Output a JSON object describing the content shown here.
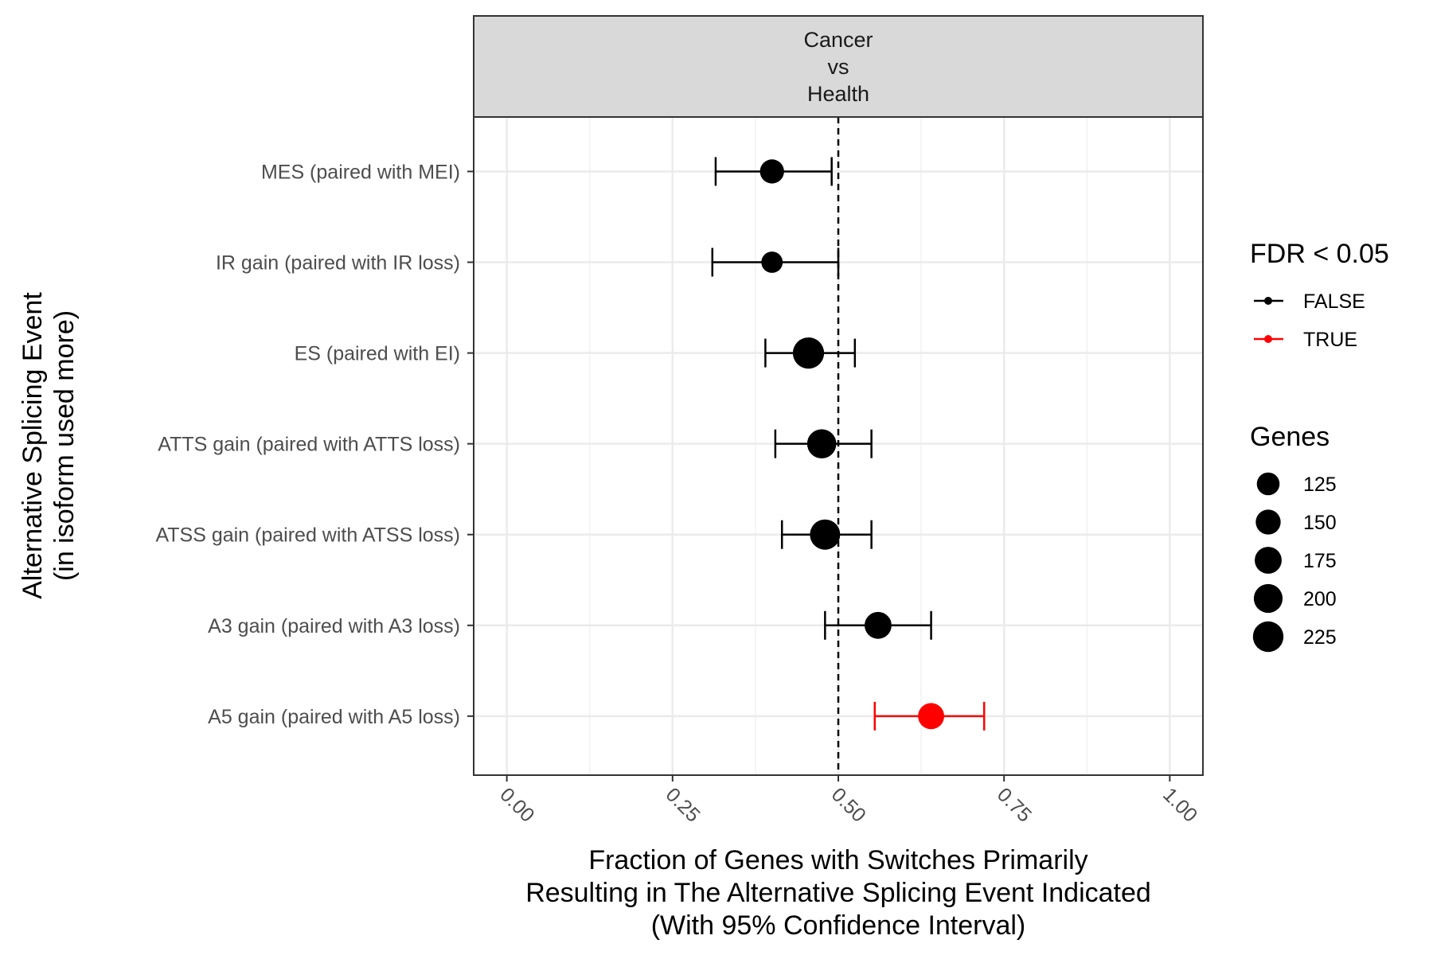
{
  "chart_data": {
    "type": "scatter",
    "facet": {
      "strip_lines": [
        "Cancer",
        "vs",
        "Health"
      ]
    },
    "categories": [
      "MES (paired with MEI)",
      "IR gain (paired with IR loss)",
      "ES (paired with EI)",
      "ATTS gain (paired with ATTS loss)",
      "ATSS gain (paired with ATSS loss)",
      "A3 gain (paired with A3 loss)",
      "A5 gain (paired with A5 loss)"
    ],
    "points": [
      {
        "category": "MES (paired with MEI)",
        "value": 0.4,
        "ci_low": 0.315,
        "ci_high": 0.49,
        "genes": 140,
        "fdr_significant": "FALSE"
      },
      {
        "category": "IR gain (paired with IR loss)",
        "value": 0.4,
        "ci_low": 0.31,
        "ci_high": 0.5,
        "genes": 110,
        "fdr_significant": "FALSE"
      },
      {
        "category": "ES (paired with EI)",
        "value": 0.455,
        "ci_low": 0.39,
        "ci_high": 0.525,
        "genes": 235,
        "fdr_significant": "FALSE"
      },
      {
        "category": "ATTS gain (paired with ATTS loss)",
        "value": 0.475,
        "ci_low": 0.405,
        "ci_high": 0.55,
        "genes": 205,
        "fdr_significant": "FALSE"
      },
      {
        "category": "ATSS gain (paired with ATSS loss)",
        "value": 0.48,
        "ci_low": 0.415,
        "ci_high": 0.55,
        "genes": 220,
        "fdr_significant": "FALSE"
      },
      {
        "category": "A3 gain (paired with A3 loss)",
        "value": 0.56,
        "ci_low": 0.48,
        "ci_high": 0.64,
        "genes": 175,
        "fdr_significant": "FALSE"
      },
      {
        "category": "A5 gain (paired with A5 loss)",
        "value": 0.64,
        "ci_low": 0.555,
        "ci_high": 0.72,
        "genes": 165,
        "fdr_significant": "TRUE"
      }
    ],
    "x_ticks": [
      "0.00",
      "0.25",
      "0.50",
      "0.75",
      "1.00"
    ],
    "xlim": [
      -0.05,
      1.05
    ],
    "reference_line": 0.5,
    "xlabel_lines": [
      "Fraction of Genes with Switches Primarily",
      "Resulting in The Alternative Splicing Event Indicated",
      "(With 95% Confidence Interval)"
    ],
    "ylabel_lines": [
      "Alternative Splicing Event",
      "(in isoform used more)"
    ],
    "grid": true,
    "legend_position": "right",
    "legend": {
      "color": {
        "title": "FDR < 0.05",
        "entries": [
          {
            "label": "FALSE",
            "color": "#000000"
          },
          {
            "label": "TRUE",
            "color": "#ff0000"
          }
        ]
      },
      "size": {
        "title": "Genes",
        "entries": [
          {
            "label": "125",
            "value": 125
          },
          {
            "label": "150",
            "value": 150
          },
          {
            "label": "175",
            "value": 175
          },
          {
            "label": "200",
            "value": 200
          },
          {
            "label": "225",
            "value": 225
          }
        ]
      }
    },
    "colors": {
      "FALSE": "#000000",
      "TRUE": "#ff0000"
    }
  }
}
